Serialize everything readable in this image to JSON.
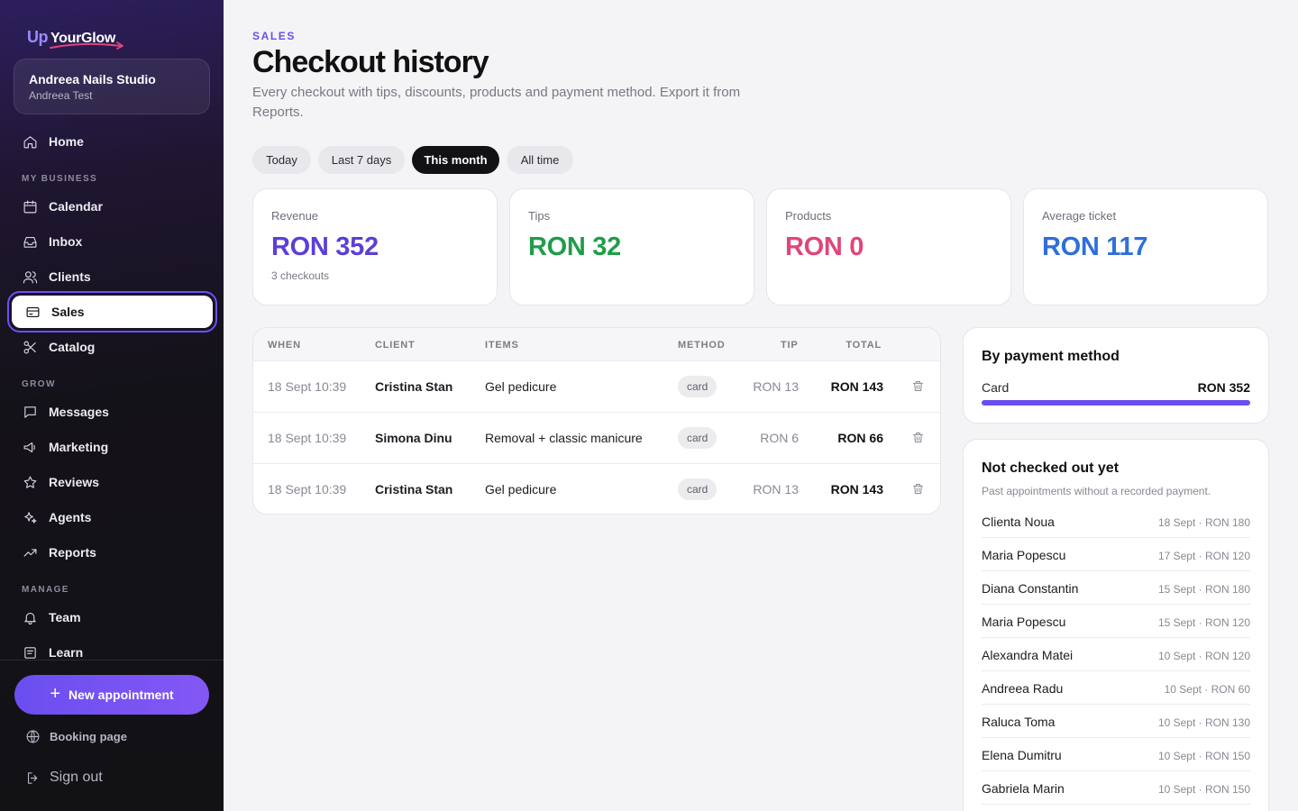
{
  "brand": {
    "logo_up": "Up",
    "logo_text": "YourGlow"
  },
  "studio": {
    "name": "Andreea Nails Studio",
    "user": "Andreea Test"
  },
  "nav": {
    "home": "Home",
    "sections": {
      "business": "MY BUSINESS",
      "grow": "GROW",
      "manage": "MANAGE"
    },
    "calendar": "Calendar",
    "inbox": "Inbox",
    "clients": "Clients",
    "sales": "Sales",
    "catalog": "Catalog",
    "messages": "Messages",
    "marketing": "Marketing",
    "reviews": "Reviews",
    "agents": "Agents",
    "reports": "Reports",
    "team": "Team",
    "learn": "Learn"
  },
  "footer": {
    "new_appointment": "New appointment",
    "booking_page": "Booking page",
    "sign_out": "Sign out"
  },
  "header": {
    "eyebrow": "SALES",
    "title": "Checkout history",
    "description": "Every checkout with tips, discounts, products and payment method. Export it from Reports."
  },
  "filters": {
    "today": "Today",
    "last7": "Last 7 days",
    "this_month": "This month",
    "all_time": "All time",
    "selected": "This month"
  },
  "stats": {
    "revenue": {
      "label": "Revenue",
      "value": "RON 352",
      "sub": "3 checkouts",
      "color": "#5b3fd6"
    },
    "tips": {
      "label": "Tips",
      "value": "RON 32",
      "color": "#1f9d4a"
    },
    "products": {
      "label": "Products",
      "value": "RON 0",
      "color": "#e0457b"
    },
    "avg": {
      "label": "Average ticket",
      "value": "RON 117",
      "color": "#2f6fd9"
    }
  },
  "table": {
    "headers": {
      "when": "WHEN",
      "client": "CLIENT",
      "items": "ITEMS",
      "method": "METHOD",
      "tip": "TIP",
      "total": "TOTAL"
    },
    "rows": [
      {
        "when": "18 Sept 10:39",
        "client": "Cristina Stan",
        "items": "Gel pedicure",
        "method": "card",
        "tip": "RON 13",
        "total": "RON 143"
      },
      {
        "when": "18 Sept 10:39",
        "client": "Simona Dinu",
        "items": "Removal + classic manicure",
        "method": "card",
        "tip": "RON 6",
        "total": "RON 66"
      },
      {
        "when": "18 Sept 10:39",
        "client": "Cristina Stan",
        "items": "Gel pedicure",
        "method": "card",
        "tip": "RON 13",
        "total": "RON 143"
      }
    ]
  },
  "payment_method": {
    "title": "By payment method",
    "label": "Card",
    "value": "RON 352",
    "share": 1.0
  },
  "not_checked": {
    "title": "Not checked out yet",
    "subtitle": "Past appointments without a recorded payment.",
    "rows": [
      {
        "name": "Clienta Noua",
        "meta": "18 Sept · RON 180"
      },
      {
        "name": "Maria Popescu",
        "meta": "17 Sept · RON 120"
      },
      {
        "name": "Diana Constantin",
        "meta": "15 Sept · RON 180"
      },
      {
        "name": "Maria Popescu",
        "meta": "15 Sept · RON 120"
      },
      {
        "name": "Alexandra Matei",
        "meta": "10 Sept · RON 120"
      },
      {
        "name": "Andreea Radu",
        "meta": "10 Sept · RON 60"
      },
      {
        "name": "Raluca Toma",
        "meta": "10 Sept · RON 130"
      },
      {
        "name": "Elena Dumitru",
        "meta": "10 Sept · RON 150"
      },
      {
        "name": "Gabriela Marin",
        "meta": "10 Sept · RON 150"
      }
    ]
  }
}
